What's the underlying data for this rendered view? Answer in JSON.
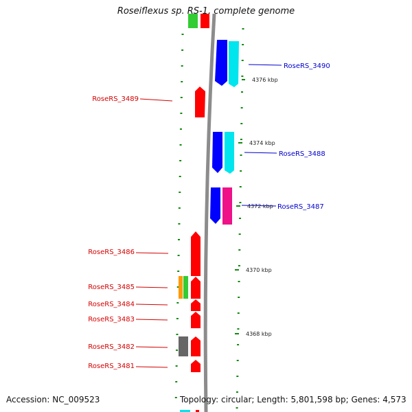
{
  "title": "Roseiflexus sp. RS-1, complete genome",
  "footer": {
    "accession": "Accession: NC_009523",
    "topology": "Topology: circular; Length: 5,801,598 bp; Genes: 4,573"
  },
  "colors": {
    "label_minus_strand": "#d40000",
    "label_plus_strand": "#0000cc",
    "backbone": "#8c8c8c",
    "tick": "#118811",
    "gene_red": "#ff0000",
    "gene_blue": "#0000ff",
    "gene_cyan": "#00e5ee",
    "gene_pink": "#ee1188",
    "gene_orange": "#ff9900",
    "gene_green": "#33cc33",
    "gene_gray": "#666666"
  },
  "scale": [
    "4376 kbp",
    "4374 kbp",
    "4372 kbp",
    "4370 kbp",
    "4368 kbp"
  ],
  "gene_labels": [
    {
      "id": "RoseRS_3490",
      "strand": "plus"
    },
    {
      "id": "RoseRS_3489",
      "strand": "minus"
    },
    {
      "id": "RoseRS_3488",
      "strand": "plus"
    },
    {
      "id": "RoseRS_3487",
      "strand": "plus"
    },
    {
      "id": "RoseRS_3486",
      "strand": "minus"
    },
    {
      "id": "RoseRS_3485",
      "strand": "minus"
    },
    {
      "id": "RoseRS_3484",
      "strand": "minus"
    },
    {
      "id": "RoseRS_3483",
      "strand": "minus"
    },
    {
      "id": "RoseRS_3482",
      "strand": "minus"
    },
    {
      "id": "RoseRS_3481",
      "strand": "minus"
    }
  ]
}
